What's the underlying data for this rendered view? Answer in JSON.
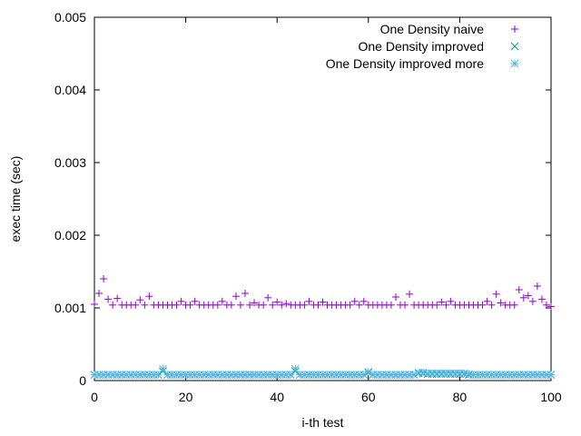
{
  "chart_data": {
    "type": "scatter",
    "xlabel": "i-th test",
    "ylabel": "exec time (sec)",
    "xlim": [
      0,
      100
    ],
    "ylim": [
      0,
      0.005
    ],
    "x_ticks": [
      0,
      20,
      40,
      60,
      80,
      100
    ],
    "x_tick_labels": [
      "0",
      "20",
      "40",
      "60",
      "80",
      "100"
    ],
    "y_ticks": [
      0,
      0.001,
      0.002,
      0.003,
      0.004,
      0.005
    ],
    "y_tick_labels": [
      "0",
      "0.001",
      "0.002",
      "0.003",
      "0.004",
      "0.005"
    ],
    "grid": false,
    "legend_position": "top-right",
    "series": [
      {
        "name": "One Density naive",
        "marker": "plus",
        "color": "#9400d3",
        "x": [
          0,
          1,
          2,
          3,
          4,
          5,
          6,
          7,
          8,
          9,
          10,
          11,
          12,
          13,
          14,
          15,
          16,
          17,
          18,
          19,
          20,
          21,
          22,
          23,
          24,
          25,
          26,
          27,
          28,
          29,
          30,
          31,
          32,
          33,
          34,
          35,
          36,
          37,
          38,
          39,
          40,
          41,
          42,
          43,
          44,
          45,
          46,
          47,
          48,
          49,
          50,
          51,
          52,
          53,
          54,
          55,
          56,
          57,
          58,
          59,
          60,
          61,
          62,
          63,
          64,
          65,
          66,
          67,
          68,
          69,
          70,
          71,
          72,
          73,
          74,
          75,
          76,
          77,
          78,
          79,
          80,
          81,
          82,
          83,
          84,
          85,
          86,
          87,
          88,
          89,
          90,
          91,
          92,
          93,
          94,
          95,
          96,
          97,
          98,
          99,
          100
        ],
        "values": [
          0.00105,
          0.0012,
          0.0014,
          0.00112,
          0.00104,
          0.00113,
          0.00104,
          0.00104,
          0.00104,
          0.00104,
          0.00111,
          0.00104,
          0.00116,
          0.00104,
          0.00104,
          0.00104,
          0.00104,
          0.00104,
          0.00104,
          0.00109,
          0.00104,
          0.00104,
          0.00109,
          0.00104,
          0.00104,
          0.00104,
          0.00104,
          0.00104,
          0.00109,
          0.00104,
          0.00104,
          0.00116,
          0.00104,
          0.0012,
          0.00104,
          0.00107,
          0.00104,
          0.00104,
          0.00114,
          0.00104,
          0.00108,
          0.00104,
          0.00106,
          0.00104,
          0.00104,
          0.00104,
          0.00104,
          0.00109,
          0.00104,
          0.00104,
          0.00108,
          0.00104,
          0.00104,
          0.00104,
          0.00104,
          0.00104,
          0.00104,
          0.00109,
          0.00104,
          0.00109,
          0.00104,
          0.00104,
          0.00104,
          0.00104,
          0.00104,
          0.00104,
          0.00115,
          0.00104,
          0.00104,
          0.00119,
          0.00104,
          0.00104,
          0.00104,
          0.00104,
          0.00104,
          0.00104,
          0.00108,
          0.00104,
          0.00109,
          0.00104,
          0.00104,
          0.00104,
          0.00104,
          0.00104,
          0.00104,
          0.00104,
          0.00109,
          0.00104,
          0.00119,
          0.00107,
          0.00104,
          0.00104,
          0.00104,
          0.00125,
          0.00114,
          0.00117,
          0.00109,
          0.0013,
          0.00112,
          0.00104,
          0.00102
        ]
      },
      {
        "name": "One Density improved",
        "marker": "x",
        "color": "#009e73",
        "x": [
          0,
          1,
          2,
          3,
          4,
          5,
          6,
          7,
          8,
          9,
          10,
          11,
          12,
          13,
          14,
          15,
          16,
          17,
          18,
          19,
          20,
          21,
          22,
          23,
          24,
          25,
          26,
          27,
          28,
          29,
          30,
          31,
          32,
          33,
          34,
          35,
          36,
          37,
          38,
          39,
          40,
          41,
          42,
          43,
          44,
          45,
          46,
          47,
          48,
          49,
          50,
          51,
          52,
          53,
          54,
          55,
          56,
          57,
          58,
          59,
          60,
          61,
          62,
          63,
          64,
          65,
          66,
          67,
          68,
          69,
          70,
          71,
          72,
          73,
          74,
          75,
          76,
          77,
          78,
          79,
          80,
          81,
          82,
          83,
          84,
          85,
          86,
          87,
          88,
          89,
          90,
          91,
          92,
          93,
          94,
          95,
          96,
          97,
          98,
          99,
          100
        ],
        "values": [
          8e-05,
          8e-05,
          8e-05,
          8e-05,
          8e-05,
          8e-05,
          8e-05,
          8e-05,
          8e-05,
          8e-05,
          8e-05,
          8e-05,
          8e-05,
          8e-05,
          8e-05,
          0.00013,
          8e-05,
          8e-05,
          8e-05,
          8e-05,
          8e-05,
          8e-05,
          8e-05,
          8e-05,
          8e-05,
          8e-05,
          8e-05,
          8e-05,
          8e-05,
          8e-05,
          8e-05,
          8e-05,
          8e-05,
          8e-05,
          8e-05,
          8e-05,
          8e-05,
          8e-05,
          8e-05,
          8e-05,
          8e-05,
          8e-05,
          8e-05,
          8e-05,
          0.00013,
          8e-05,
          8e-05,
          8e-05,
          8e-05,
          8e-05,
          8e-05,
          8e-05,
          8e-05,
          8e-05,
          8e-05,
          8e-05,
          8e-05,
          8e-05,
          8e-05,
          8e-05,
          0.00011,
          8e-05,
          8e-05,
          8e-05,
          8e-05,
          8e-05,
          8e-05,
          8e-05,
          8e-05,
          8e-05,
          8e-05,
          0.0001,
          0.0001,
          9e-05,
          9e-05,
          9e-05,
          9e-05,
          9e-05,
          9e-05,
          9e-05,
          9e-05,
          9e-05,
          8e-05,
          8e-05,
          8e-05,
          8e-05,
          8e-05,
          8e-05,
          8e-05,
          8e-05,
          8e-05,
          8e-05,
          8e-05,
          8e-05,
          8e-05,
          8e-05,
          8e-05,
          8e-05,
          8e-05,
          8e-05,
          8e-05
        ]
      },
      {
        "name": "One Density improved more",
        "marker": "star",
        "color": "#56b4e9",
        "x": [
          0,
          1,
          2,
          3,
          4,
          5,
          6,
          7,
          8,
          9,
          10,
          11,
          12,
          13,
          14,
          15,
          16,
          17,
          18,
          19,
          20,
          21,
          22,
          23,
          24,
          25,
          26,
          27,
          28,
          29,
          30,
          31,
          32,
          33,
          34,
          35,
          36,
          37,
          38,
          39,
          40,
          41,
          42,
          43,
          44,
          45,
          46,
          47,
          48,
          49,
          50,
          51,
          52,
          53,
          54,
          55,
          56,
          57,
          58,
          59,
          60,
          61,
          62,
          63,
          64,
          65,
          66,
          67,
          68,
          69,
          70,
          71,
          72,
          73,
          74,
          75,
          76,
          77,
          78,
          79,
          80,
          81,
          82,
          83,
          84,
          85,
          86,
          87,
          88,
          89,
          90,
          91,
          92,
          93,
          94,
          95,
          96,
          97,
          98,
          99,
          100
        ],
        "values": [
          8e-05,
          8e-05,
          8e-05,
          8e-05,
          8e-05,
          8e-05,
          8e-05,
          8e-05,
          8e-05,
          8e-05,
          8e-05,
          8e-05,
          8e-05,
          8e-05,
          8e-05,
          0.00016,
          8e-05,
          8e-05,
          8e-05,
          8e-05,
          8e-05,
          8e-05,
          8e-05,
          8e-05,
          8e-05,
          8e-05,
          8e-05,
          8e-05,
          8e-05,
          8e-05,
          8e-05,
          8e-05,
          8e-05,
          8e-05,
          8e-05,
          8e-05,
          8e-05,
          8e-05,
          8e-05,
          8e-05,
          8e-05,
          8e-05,
          8e-05,
          8e-05,
          0.00016,
          8e-05,
          8e-05,
          8e-05,
          8e-05,
          8e-05,
          8e-05,
          8e-05,
          8e-05,
          8e-05,
          8e-05,
          8e-05,
          8e-05,
          8e-05,
          8e-05,
          8e-05,
          0.00012,
          8e-05,
          8e-05,
          8e-05,
          8e-05,
          8e-05,
          8e-05,
          8e-05,
          8e-05,
          8e-05,
          8e-05,
          0.00011,
          0.00011,
          0.0001,
          0.0001,
          0.0001,
          0.0001,
          0.0001,
          0.0001,
          0.0001,
          0.0001,
          0.0001,
          9e-05,
          8e-05,
          8e-05,
          8e-05,
          8e-05,
          8e-05,
          8e-05,
          8e-05,
          8e-05,
          8e-05,
          8e-05,
          8e-05,
          8e-05,
          8e-05,
          8e-05,
          8e-05,
          8e-05,
          8e-05,
          8e-05
        ]
      }
    ]
  }
}
